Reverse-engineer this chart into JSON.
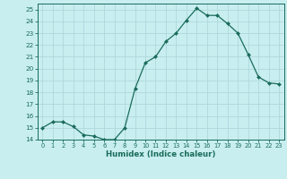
{
  "x": [
    0,
    1,
    2,
    3,
    4,
    5,
    6,
    7,
    8,
    9,
    10,
    11,
    12,
    13,
    14,
    15,
    16,
    17,
    18,
    19,
    20,
    21,
    22,
    23
  ],
  "y": [
    15.0,
    15.5,
    15.5,
    15.1,
    14.4,
    14.3,
    14.0,
    14.0,
    15.0,
    18.3,
    20.5,
    21.0,
    22.3,
    23.0,
    24.1,
    25.1,
    24.5,
    24.5,
    23.8,
    23.0,
    21.2,
    19.3,
    18.8,
    18.7
  ],
  "line_color": "#1a6b5a",
  "marker_color": "#1a6b5a",
  "bg_color": "#c8eef0",
  "grid_color": "#b0d8dc",
  "xlabel": "Humidex (Indice chaleur)",
  "xlim": [
    -0.5,
    23.5
  ],
  "ylim": [
    14,
    25.5
  ],
  "yticks": [
    14,
    15,
    16,
    17,
    18,
    19,
    20,
    21,
    22,
    23,
    24,
    25
  ],
  "xticks": [
    0,
    1,
    2,
    3,
    4,
    5,
    6,
    7,
    8,
    9,
    10,
    11,
    12,
    13,
    14,
    15,
    16,
    17,
    18,
    19,
    20,
    21,
    22,
    23
  ]
}
